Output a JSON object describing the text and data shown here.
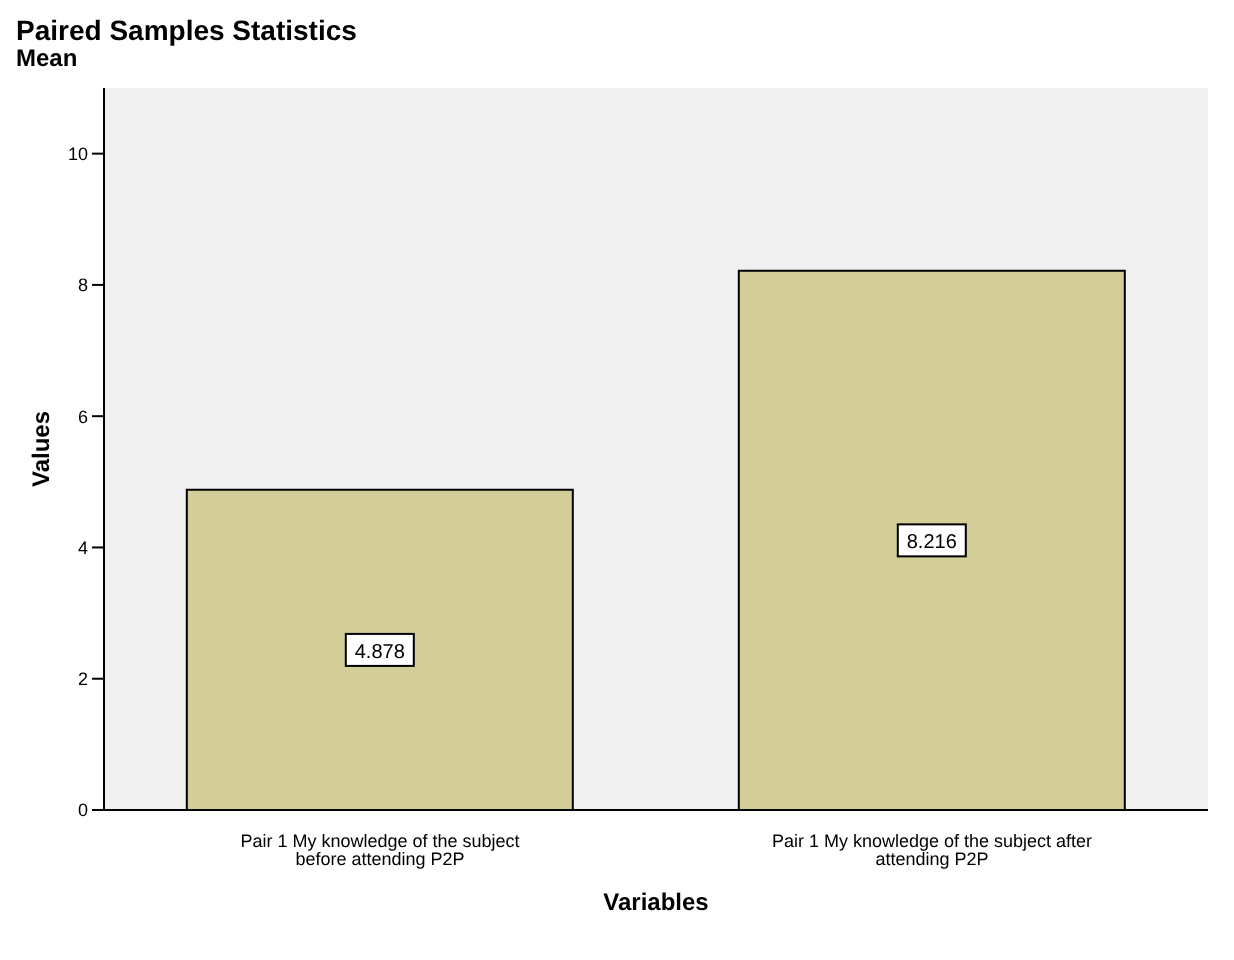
{
  "chart_data": {
    "type": "bar",
    "title": "Paired Samples Statistics",
    "subtitle": "Mean",
    "xlabel": "Variables",
    "ylabel": "Values",
    "categories": [
      "Pair 1 My knowledge of the subject before attending P2P",
      "Pair 1 My knowledge of the subject after attending P2P"
    ],
    "values": [
      4.878,
      8.216
    ],
    "color": "#d3ce97",
    "data_labels": true,
    "ylim": [
      0,
      11
    ],
    "yticks": [
      0,
      2,
      4,
      6,
      8,
      10
    ],
    "legend": false
  }
}
